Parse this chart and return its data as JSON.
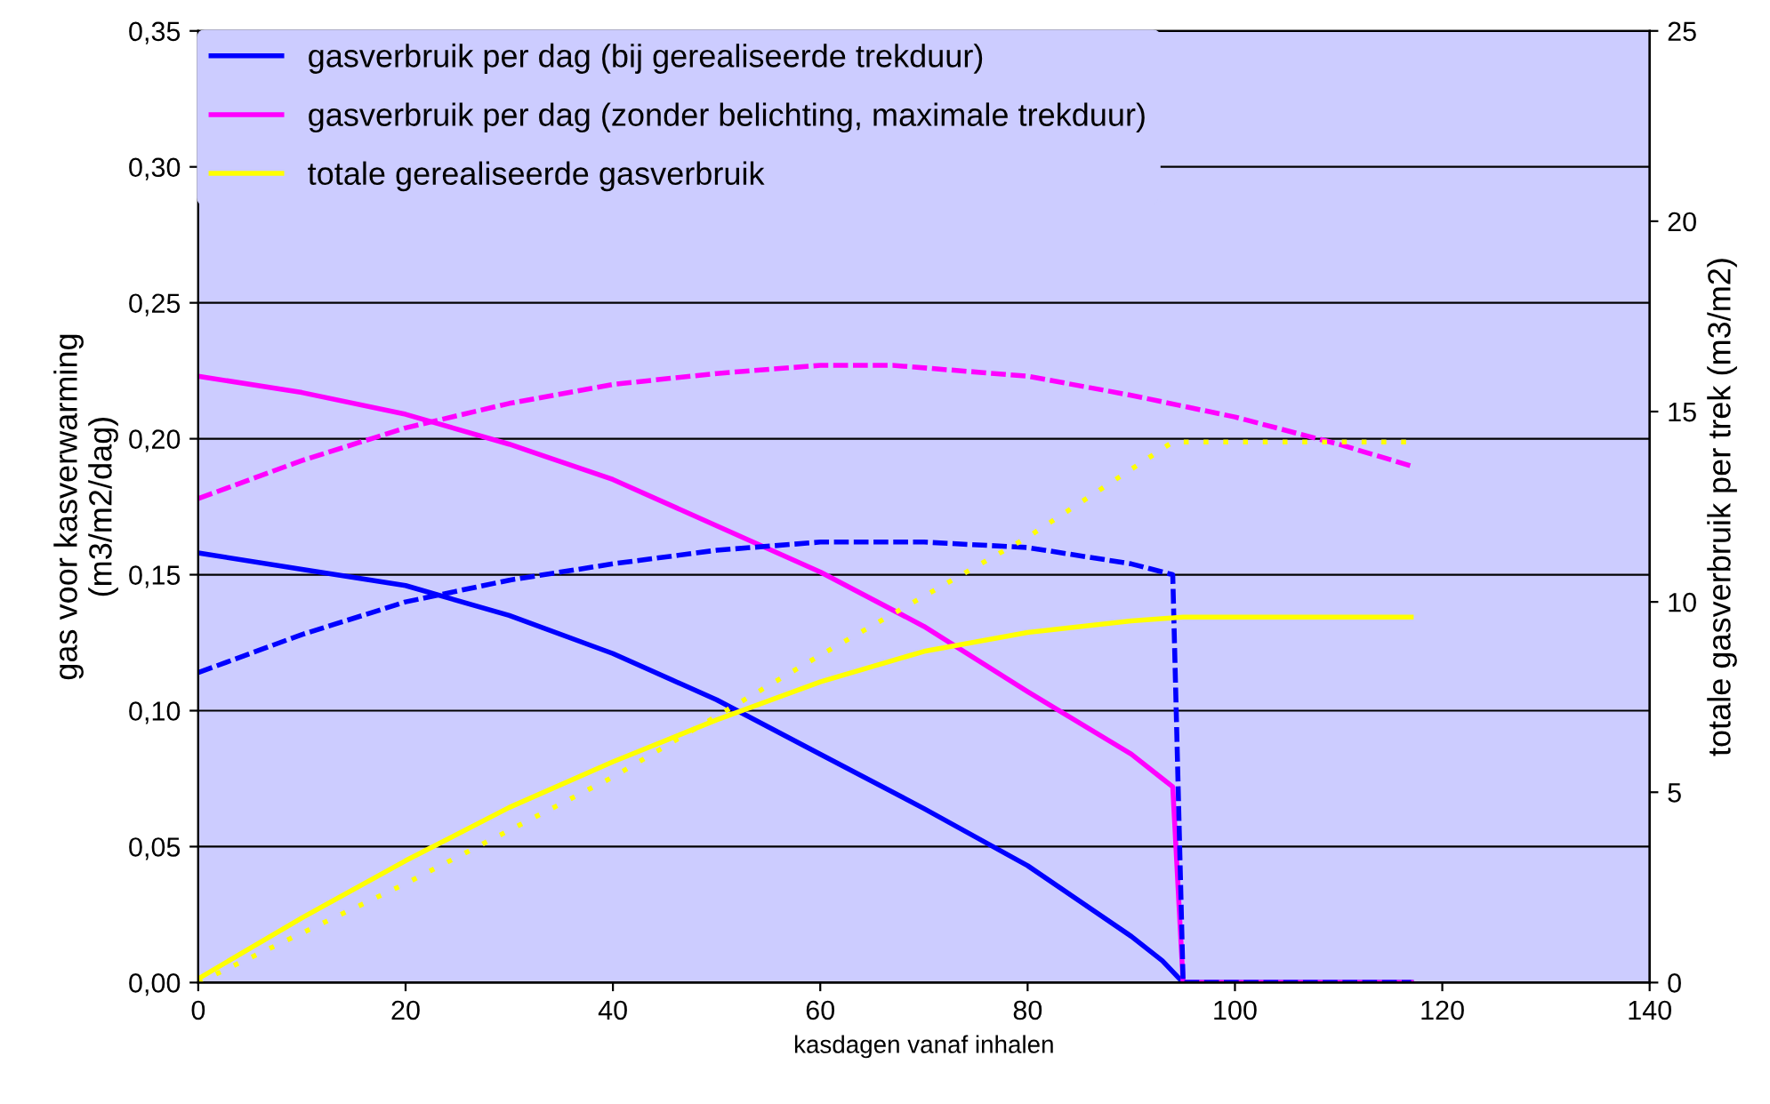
{
  "chart_data": {
    "type": "line",
    "xlabel": "kasdagen vanaf inhalen",
    "ylabel": "gas voor kasverwarming\n(m3/m2/dag)",
    "y2label": "totale gasverbruik per trek (m3/m2)",
    "xlim": [
      0,
      140
    ],
    "xticks": [
      0,
      20,
      40,
      60,
      80,
      100,
      120,
      140
    ],
    "ylim": [
      0,
      0.35
    ],
    "yticks": [
      {
        "value": 0,
        "label": "0,00"
      },
      {
        "value": 0.05,
        "label": "0,05"
      },
      {
        "value": 0.1,
        "label": "0,10"
      },
      {
        "value": 0.15,
        "label": "0,15"
      },
      {
        "value": 0.2,
        "label": "0,20"
      },
      {
        "value": 0.25,
        "label": "0,25"
      },
      {
        "value": 0.3,
        "label": "0,30"
      },
      {
        "value": 0.35,
        "label": "0,35"
      }
    ],
    "y2lim": [
      0,
      25
    ],
    "y2ticks": [
      0,
      5,
      10,
      15,
      20,
      25
    ],
    "grid": "y",
    "legend": "top left",
    "series": [
      {
        "name": "gasverbruik per dag (bij gerealiseerde trekduur)",
        "color": "#0000ff",
        "line_style": "solid",
        "x": [
          0,
          10,
          20,
          30,
          40,
          50,
          60,
          70,
          80,
          90,
          93,
          95,
          117
        ],
        "values": [
          0.158,
          0.152,
          0.146,
          0.135,
          0.121,
          0.104,
          0.084,
          0.064,
          0.043,
          0.017,
          0.008,
          0,
          0
        ]
      },
      {
        "name": "gasverbruik per dag (zonder belichting, maximale trekduur)",
        "color": "#ff00ff",
        "line_style": "solid",
        "x": [
          0,
          10,
          20,
          30,
          40,
          50,
          60,
          70,
          80,
          90,
          93,
          94,
          95,
          117
        ],
        "values": [
          0.223,
          0.217,
          0.209,
          0.198,
          0.185,
          0.168,
          0.151,
          0.131,
          0.107,
          0.084,
          0.075,
          0.072,
          0,
          0
        ]
      },
      {
        "name": "totale gerealiseerde gasverbruik",
        "color": "#ffff00",
        "line_style": "solid",
        "axis": "y2",
        "x": [
          0,
          10,
          20,
          30,
          40,
          50,
          60,
          70,
          80,
          90,
          95,
          117
        ],
        "values": [
          0.1,
          1.7,
          3.2,
          4.6,
          5.8,
          6.9,
          7.9,
          8.7,
          9.2,
          9.5,
          9.6,
          9.6
        ]
      },
      {
        "color": "#0000ff",
        "line_style": "dashed",
        "x": [
          0,
          10,
          20,
          30,
          40,
          50,
          60,
          70,
          80,
          90,
          94,
          95,
          117
        ],
        "values": [
          0.114,
          0.128,
          0.14,
          0.148,
          0.154,
          0.159,
          0.162,
          0.162,
          0.16,
          0.154,
          0.15,
          0,
          0
        ]
      },
      {
        "color": "#ff00ff",
        "line_style": "dashed",
        "x": [
          0,
          10,
          20,
          30,
          40,
          50,
          60,
          67,
          80,
          90,
          100,
          110,
          117
        ],
        "values": [
          0.178,
          0.192,
          0.204,
          0.213,
          0.22,
          0.224,
          0.227,
          0.227,
          0.223,
          0.216,
          0.208,
          0.198,
          0.19
        ]
      },
      {
        "color": "#ffff00",
        "line_style": "dotted",
        "axis": "y2",
        "x": [
          0,
          20,
          40,
          60,
          80,
          94,
          117
        ],
        "values": [
          0,
          2.6,
          5.4,
          8.6,
          11.7,
          14.2,
          14.2
        ]
      }
    ]
  }
}
